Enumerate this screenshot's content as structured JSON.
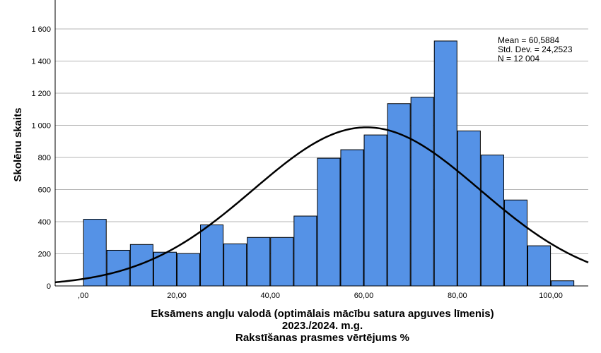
{
  "chart_data": {
    "type": "bar",
    "subtype": "histogram-with-normal-curve",
    "bin_width": 5,
    "bins": [
      {
        "x": 2.5,
        "count": 415
      },
      {
        "x": 7.5,
        "count": 222
      },
      {
        "x": 12.5,
        "count": 258
      },
      {
        "x": 17.5,
        "count": 210
      },
      {
        "x": 22.5,
        "count": 202
      },
      {
        "x": 27.5,
        "count": 380
      },
      {
        "x": 32.5,
        "count": 262
      },
      {
        "x": 37.5,
        "count": 302
      },
      {
        "x": 42.5,
        "count": 302
      },
      {
        "x": 47.5,
        "count": 435
      },
      {
        "x": 52.5,
        "count": 795
      },
      {
        "x": 57.5,
        "count": 848
      },
      {
        "x": 62.5,
        "count": 940
      },
      {
        "x": 67.5,
        "count": 1135
      },
      {
        "x": 72.5,
        "count": 1175
      },
      {
        "x": 77.5,
        "count": 1525
      },
      {
        "x": 82.5,
        "count": 965
      },
      {
        "x": 87.5,
        "count": 815
      },
      {
        "x": 92.5,
        "count": 535
      },
      {
        "x": 97.5,
        "count": 250
      },
      {
        "x": 102.5,
        "count": 32
      }
    ],
    "normal_curve": {
      "mean": 60.5884,
      "std_dev": 24.2523,
      "n": 12004
    },
    "xlim": [
      -6,
      108
    ],
    "ylim": [
      0,
      1780
    ],
    "x_ticks": [
      0,
      20,
      40,
      60,
      80,
      100
    ],
    "x_tick_labels": [
      ",00",
      "20,00",
      "40,00",
      "60,00",
      "80,00",
      "100,00"
    ],
    "y_ticks": [
      0,
      200,
      400,
      600,
      800,
      1000,
      1200,
      1400,
      1600
    ],
    "y_tick_labels": [
      "0",
      "200",
      "400",
      "600",
      "800",
      "1 000",
      "1 200",
      "1 400",
      "1 600"
    ],
    "ylabel": "Skolēnu skaits",
    "xlabel_lines": [
      "Eksāmens angļu valodā (optimālais mācību satura apguves līmenis)",
      "2023./2024. m.g.",
      "Rakstīšanas prasmes vērtējums %"
    ],
    "stats_lines": [
      "Mean = 60,5884",
      "Std. Dev. = 24,2523",
      "N = 12 004"
    ],
    "grid": true,
    "bar_color": "#5592e6",
    "bar_edge_color": "#000000",
    "curve_color": "#000000",
    "grid_color": "#b4b4b4"
  }
}
